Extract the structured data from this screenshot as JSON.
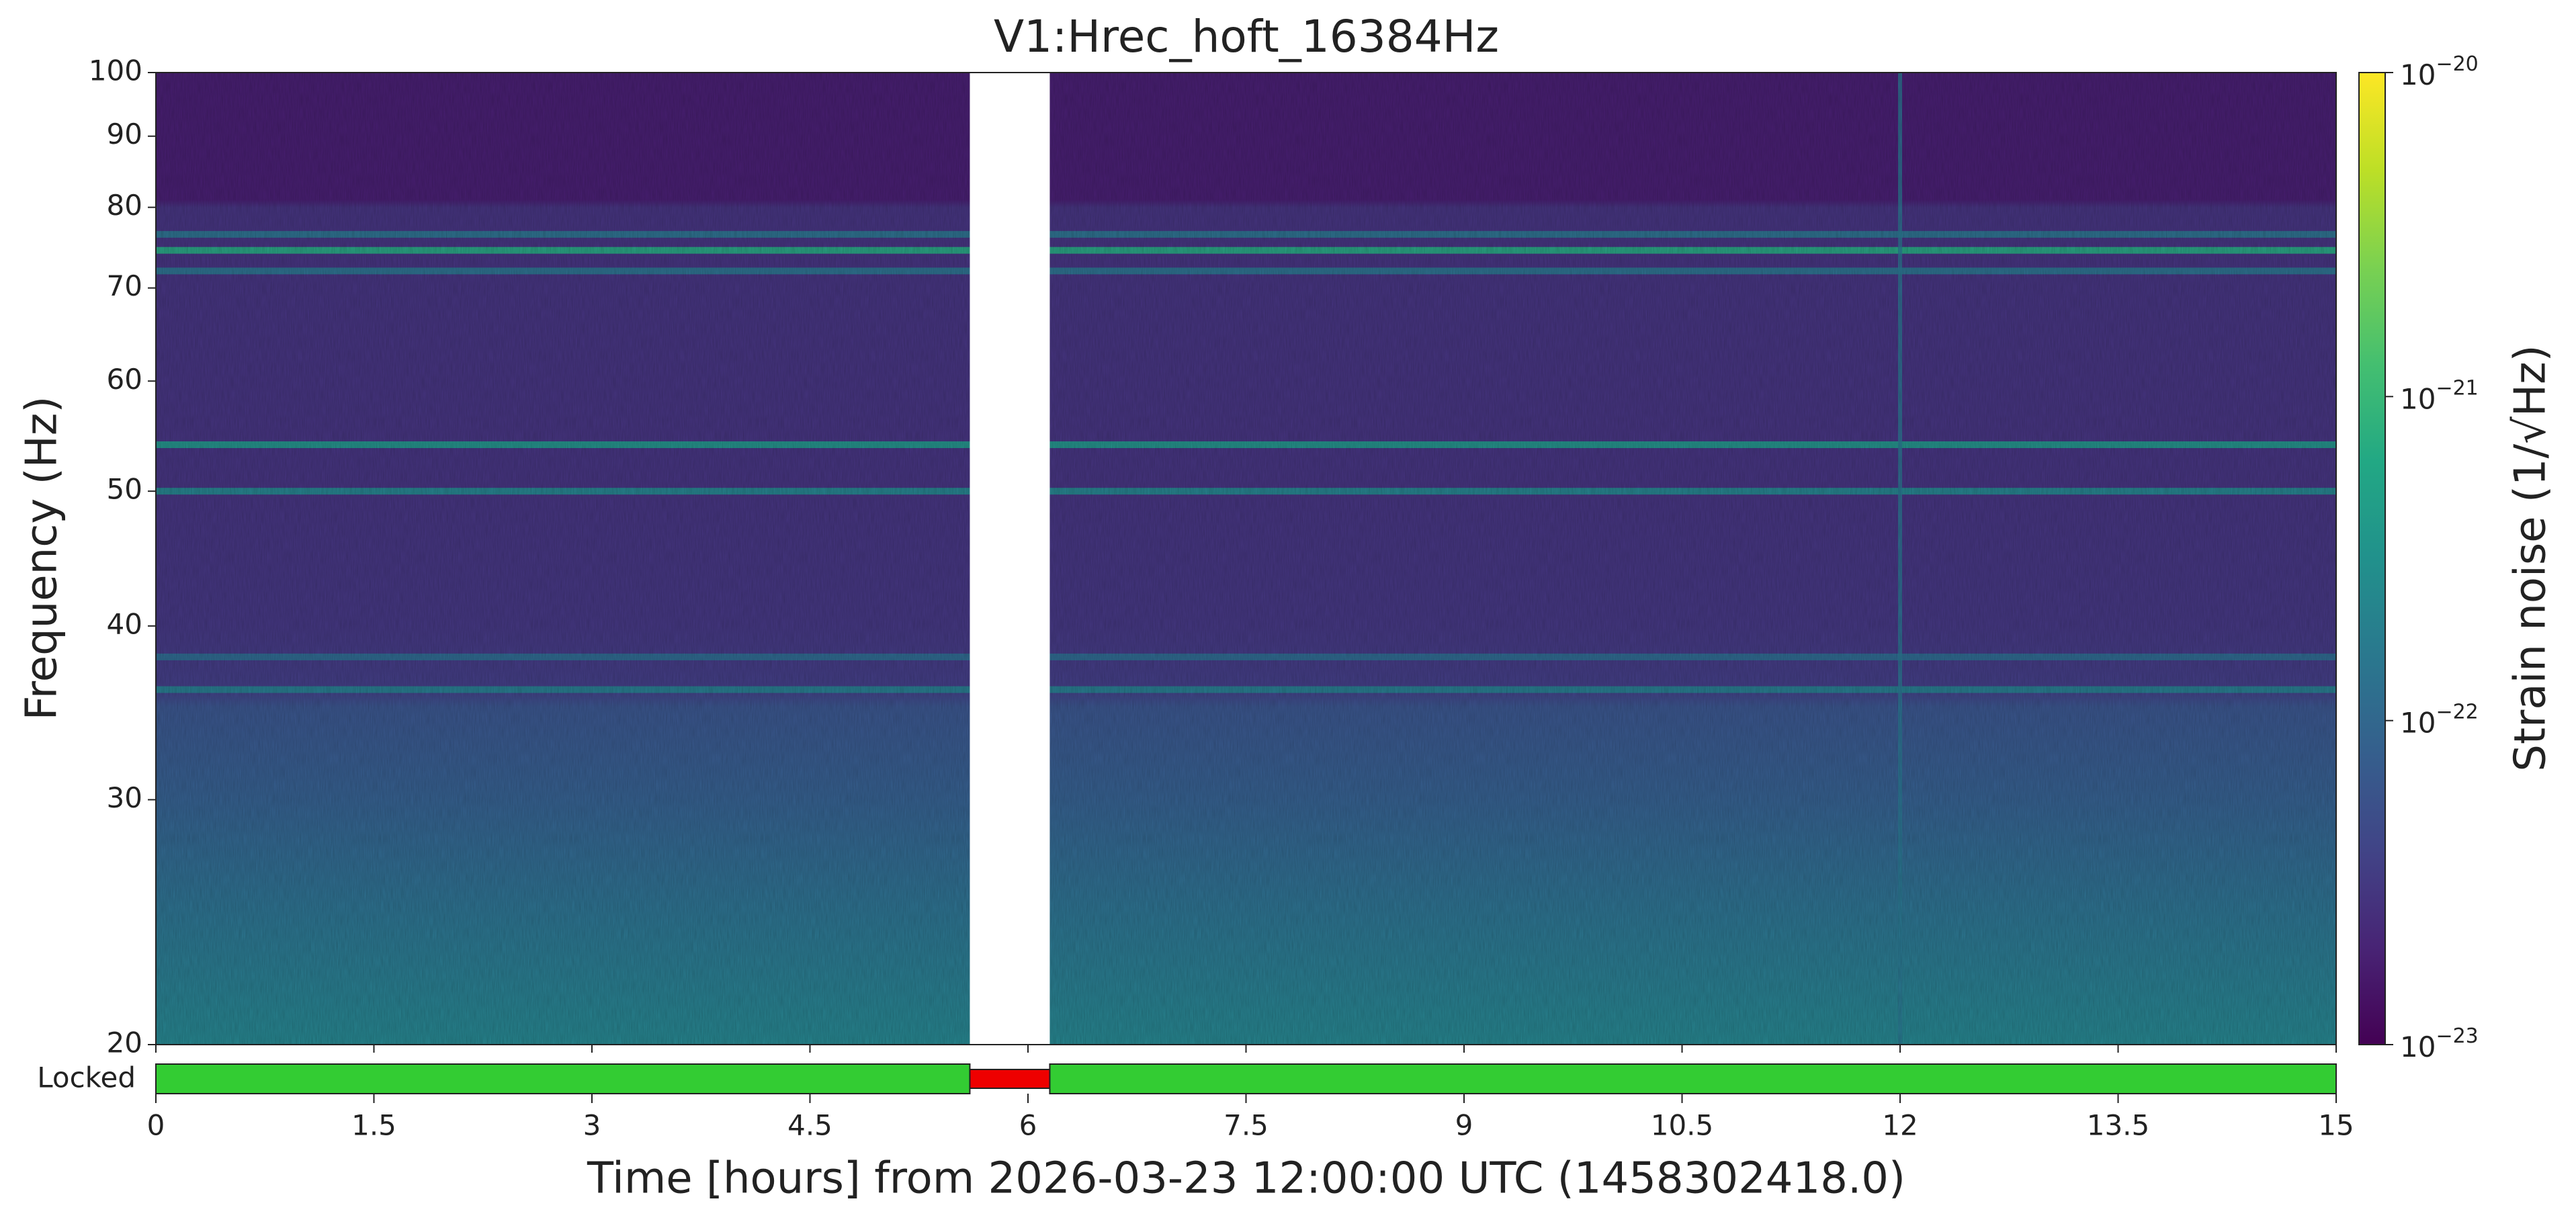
{
  "chart_data": {
    "type": "spectrogram",
    "title": "V1:Hrec_hoft_16384Hz",
    "xlabel": "Time [hours] from 2026-03-23 12:00:00 UTC (1458302418.0)",
    "ylabel": "Frequency (Hz)",
    "colorbar_label": "Strain noise (1/√Hz)",
    "xlim": [
      0,
      15
    ],
    "xticks": [
      0,
      1.5,
      3,
      4.5,
      6,
      7.5,
      9,
      10.5,
      12,
      13.5,
      15
    ],
    "ylim": [
      20,
      100
    ],
    "yticks": [
      20,
      30,
      40,
      50,
      60,
      70,
      80,
      90,
      100
    ],
    "yscale": "log",
    "clim": [
      1e-23,
      1e-20
    ],
    "cscale": "log",
    "cticks": [
      {
        "value": 1e-23,
        "label": "10",
        "exponent": "−23"
      },
      {
        "value": 1e-22,
        "label": "10",
        "exponent": "−22"
      },
      {
        "value": 1e-21,
        "label": "10",
        "exponent": "−21"
      },
      {
        "value": 1e-20,
        "label": "10",
        "exponent": "−20"
      }
    ],
    "noise_floor": {
      "frequency": [
        20,
        25,
        30,
        35,
        36,
        40,
        50,
        80,
        81,
        100
      ],
      "amplitude": [
        2.2e-22,
        1.3e-22,
        8e-23,
        6e-23,
        3.5e-23,
        3e-23,
        2.8e-23,
        2.8e-23,
        1.8e-23,
        1.8e-23
      ]
    },
    "spectral_lines": {
      "frequency": [
        74.5,
        72,
        76.5,
        54,
        50,
        38,
        36
      ],
      "amplitude": [
        7e-22,
        1.5e-22,
        1.5e-22,
        4e-22,
        2.5e-22,
        1.2e-22,
        2e-22
      ]
    },
    "transients": {
      "time": [
        12
      ],
      "amplitude": [
        1.5e-22
      ]
    },
    "gap": [
      5.6,
      6.15
    ],
    "state_label": "Locked",
    "segments": [
      {
        "start": 0,
        "end": 5.6,
        "color": "#33cc33"
      },
      {
        "start": 5.6,
        "end": 6.15,
        "color": "#ee0000"
      },
      {
        "start": 6.15,
        "end": 15,
        "color": "#33cc33"
      }
    ]
  }
}
